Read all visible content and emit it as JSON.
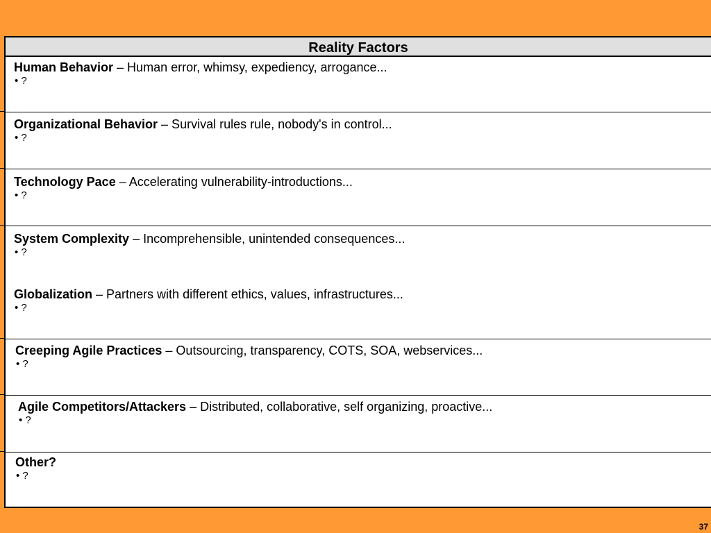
{
  "title": "Reality Factors",
  "page_number": "37",
  "rows": [
    {
      "entries": [
        {
          "term": "Human Behavior",
          "desc": " – Human error, whimsy, expediency, arrogance...",
          "bullet": "• ?"
        }
      ]
    },
    {
      "entries": [
        {
          "term": "Organizational Behavior",
          "desc": " – Survival rules rule, nobody's in control...",
          "bullet": "• ?"
        }
      ]
    },
    {
      "entries": [
        {
          "term": "Technology Pace",
          "desc": " – Accelerating vulnerability-introductions...",
          "bullet": "• ?"
        }
      ]
    },
    {
      "entries": [
        {
          "term": "System Complexity",
          "desc": " – Incomprehensible, unintended consequences...",
          "bullet": "• ?"
        },
        {
          "term": "Globalization",
          "desc": " – Partners with different ethics, values, infrastructures...",
          "bullet": "• ?"
        }
      ]
    },
    {
      "entries": [
        {
          "term": "Creeping Agile Practices",
          "desc": " – Outsourcing, transparency, COTS, SOA, webservices...",
          "bullet": "• ?"
        }
      ]
    },
    {
      "entries": [
        {
          "term": "Agile Competitors/Attackers",
          "desc": " – Distributed, collaborative, self organizing, proactive...",
          "bullet": "• ?"
        }
      ]
    },
    {
      "entries": [
        {
          "term": "Other?",
          "desc": "",
          "bullet": "• ?"
        }
      ]
    }
  ]
}
